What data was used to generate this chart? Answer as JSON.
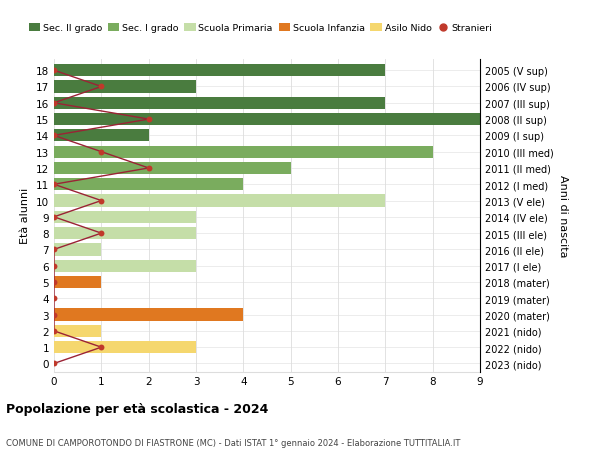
{
  "title": "Popolazione per età scolastica - 2024",
  "subtitle": "COMUNE DI CAMPOROTONDO DI FIASTRONE (MC) - Dati ISTAT 1° gennaio 2024 - Elaborazione TUTTITALIA.IT",
  "xlabel_left": "Età alunni",
  "ylabel_right": "Anni di nascita",
  "xlim": [
    0,
    9
  ],
  "legend_labels": [
    "Sec. II grado",
    "Sec. I grado",
    "Scuola Primaria",
    "Scuola Infanzia",
    "Asilo Nido",
    "Stranieri"
  ],
  "legend_colors": [
    "#4a7c3f",
    "#7aac5e",
    "#c5dea8",
    "#e07820",
    "#f5d76e",
    "#c0392b"
  ],
  "ages": [
    18,
    17,
    16,
    15,
    14,
    13,
    12,
    11,
    10,
    9,
    8,
    7,
    6,
    5,
    4,
    3,
    2,
    1,
    0
  ],
  "years": [
    "2005 (V sup)",
    "2006 (IV sup)",
    "2007 (III sup)",
    "2008 (II sup)",
    "2009 (I sup)",
    "2010 (III med)",
    "2011 (II med)",
    "2012 (I med)",
    "2013 (V ele)",
    "2014 (IV ele)",
    "2015 (III ele)",
    "2016 (II ele)",
    "2017 (I ele)",
    "2018 (mater)",
    "2019 (mater)",
    "2020 (mater)",
    "2021 (nido)",
    "2022 (nido)",
    "2023 (nido)"
  ],
  "bars": [
    {
      "age": 18,
      "value": 7,
      "color": "#4a7c3f"
    },
    {
      "age": 17,
      "value": 3,
      "color": "#4a7c3f"
    },
    {
      "age": 16,
      "value": 7,
      "color": "#4a7c3f"
    },
    {
      "age": 15,
      "value": 9,
      "color": "#4a7c3f"
    },
    {
      "age": 14,
      "value": 2,
      "color": "#4a7c3f"
    },
    {
      "age": 13,
      "value": 8,
      "color": "#7aac5e"
    },
    {
      "age": 12,
      "value": 5,
      "color": "#7aac5e"
    },
    {
      "age": 11,
      "value": 4,
      "color": "#7aac5e"
    },
    {
      "age": 10,
      "value": 7,
      "color": "#c5dea8"
    },
    {
      "age": 9,
      "value": 3,
      "color": "#c5dea8"
    },
    {
      "age": 8,
      "value": 3,
      "color": "#c5dea8"
    },
    {
      "age": 7,
      "value": 1,
      "color": "#c5dea8"
    },
    {
      "age": 6,
      "value": 3,
      "color": "#c5dea8"
    },
    {
      "age": 5,
      "value": 1,
      "color": "#e07820"
    },
    {
      "age": 4,
      "value": 0,
      "color": "#e07820"
    },
    {
      "age": 3,
      "value": 4,
      "color": "#e07820"
    },
    {
      "age": 2,
      "value": 1,
      "color": "#f5d76e"
    },
    {
      "age": 1,
      "value": 3,
      "color": "#f5d76e"
    },
    {
      "age": 0,
      "value": 0,
      "color": "#f5d76e"
    }
  ],
  "stranieri": [
    {
      "age": 18,
      "value": 0
    },
    {
      "age": 17,
      "value": 1
    },
    {
      "age": 16,
      "value": 0
    },
    {
      "age": 15,
      "value": 2
    },
    {
      "age": 14,
      "value": 0
    },
    {
      "age": 13,
      "value": 1
    },
    {
      "age": 12,
      "value": 2
    },
    {
      "age": 11,
      "value": 0
    },
    {
      "age": 10,
      "value": 1
    },
    {
      "age": 9,
      "value": 0
    },
    {
      "age": 8,
      "value": 1
    },
    {
      "age": 7,
      "value": 0
    },
    {
      "age": 6,
      "value": 0
    },
    {
      "age": 5,
      "value": 0
    },
    {
      "age": 4,
      "value": 0
    },
    {
      "age": 3,
      "value": 0
    },
    {
      "age": 2,
      "value": 0
    },
    {
      "age": 1,
      "value": 1
    },
    {
      "age": 0,
      "value": 0
    }
  ],
  "bg_color": "#ffffff",
  "bar_height": 0.75,
  "grid_color": "#dddddd",
  "stranieri_color": "#c0392b",
  "stranieri_line_color": "#9b2335"
}
